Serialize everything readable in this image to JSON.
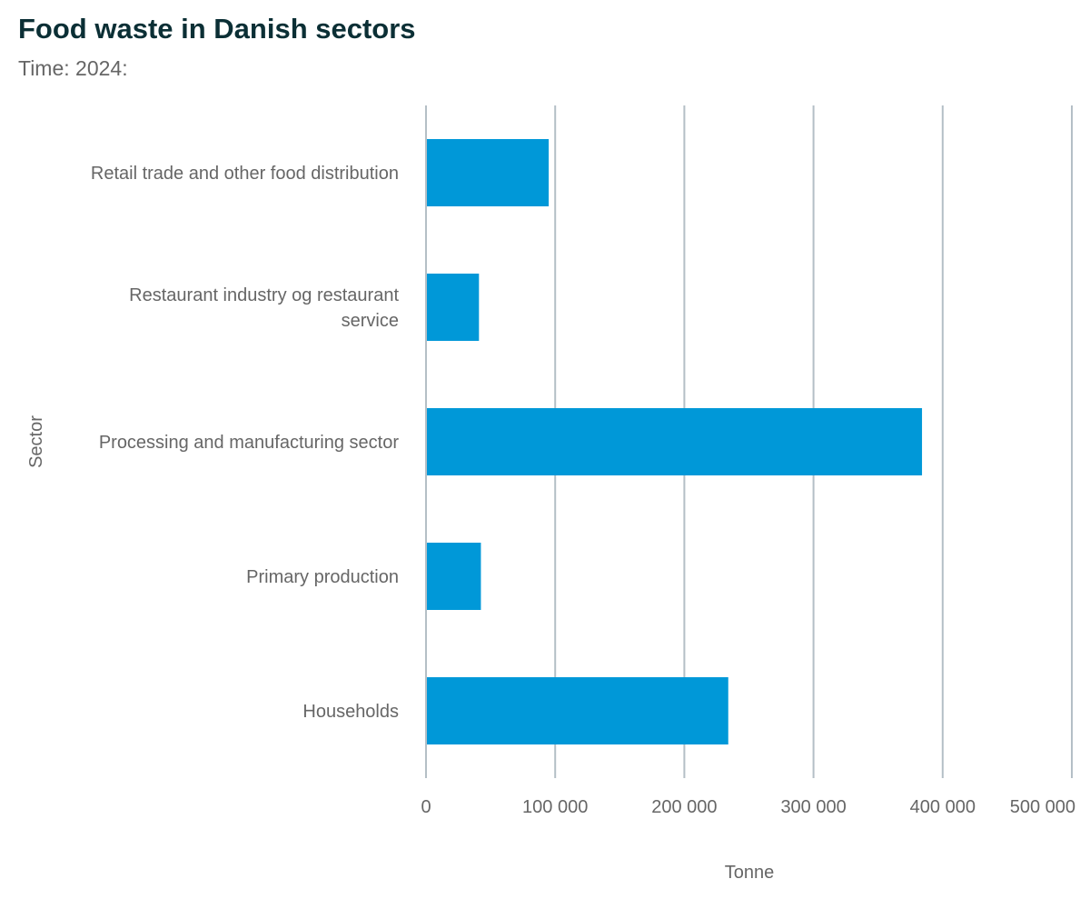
{
  "title": "Food waste in Danish sectors",
  "subtitle": "Time: 2024:",
  "colors": {
    "bar": "#0098d8",
    "grid": "#b4bfc6",
    "text": "#666666",
    "title": "#0b2f35"
  },
  "chart_data": {
    "type": "bar",
    "orientation": "horizontal",
    "categories": [
      "Retail trade and other food distribution",
      "Restaurant industry og restaurant service",
      "Processing and manufacturing sector",
      "Primary production",
      "Households"
    ],
    "values": [
      95000,
      41000,
      384000,
      42500,
      234000
    ],
    "xlabel": "Tonne",
    "ylabel": "Sector",
    "xlim": [
      0,
      500000
    ],
    "xticks": [
      "0",
      "100 000",
      "200 000",
      "300 000",
      "400 000",
      "500 000"
    ],
    "grid": true,
    "legend": "none"
  }
}
